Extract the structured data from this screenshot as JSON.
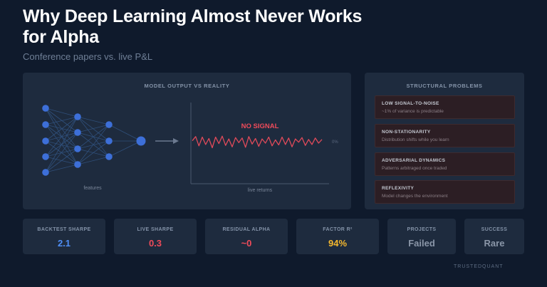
{
  "header": {
    "title": "Why Deep Learning Almost Never Works for Alpha",
    "subtitle": "Conference papers vs. live P&L"
  },
  "model_panel": {
    "heading": "MODEL OUTPUT VS REALITY",
    "network_caption": "features",
    "signal_label": "NO SIGNAL",
    "chart_caption": "live returns",
    "zero_label": "0%"
  },
  "problems_panel": {
    "heading": "STRUCTURAL PROBLEMS",
    "items": [
      {
        "title": "LOW SIGNAL-TO-NOISE",
        "desc": "~1% of variance is predictable"
      },
      {
        "title": "NON-STATIONARITY",
        "desc": "Distribution shifts while you learn"
      },
      {
        "title": "ADVERSARIAL DYNAMICS",
        "desc": "Patterns arbitraged once traded"
      },
      {
        "title": "REFLEXIVITY",
        "desc": "Model changes the environment"
      }
    ]
  },
  "stats": [
    {
      "label": "BACKTEST SHARPE",
      "value": "2.1",
      "color": "#4f8ff7"
    },
    {
      "label": "LIVE SHARPE",
      "value": "0.3",
      "color": "#ef4b5a"
    },
    {
      "label": "RESIDUAL ALPHA",
      "value": "~0",
      "color": "#ef4b5a"
    },
    {
      "label": "FACTOR R²",
      "value": "94%",
      "color": "#f5b82e"
    },
    {
      "label": "PROJECTS",
      "value": "Failed",
      "color": "#8a96a8"
    },
    {
      "label": "SUCCESS",
      "value": "Rare",
      "color": "#8a96a8"
    }
  ],
  "footer": {
    "brand": "TRUSTEDQUANT"
  },
  "colors": {
    "node": "#3d6fd8",
    "edge": "#2f4f7a",
    "noise": "#e04a5a",
    "accent_red": "#ef4b5a"
  },
  "noise_series": [
    0.1,
    0.55,
    -0.45,
    0.5,
    -0.3,
    0.35,
    -0.65,
    0.5,
    -0.2,
    0.6,
    -0.4,
    0.3,
    -0.55,
    0.45,
    -0.1,
    0.4,
    -0.6,
    0.55,
    -0.25,
    0.35,
    -0.5,
    0.3,
    -0.15,
    0.5,
    -0.45,
    0.2,
    -0.35,
    0.5,
    -0.3,
    0.4,
    -0.55,
    0.3,
    -0.05,
    0.45,
    -0.4,
    0.25,
    -0.3,
    0.4,
    -0.15,
    0.25
  ]
}
